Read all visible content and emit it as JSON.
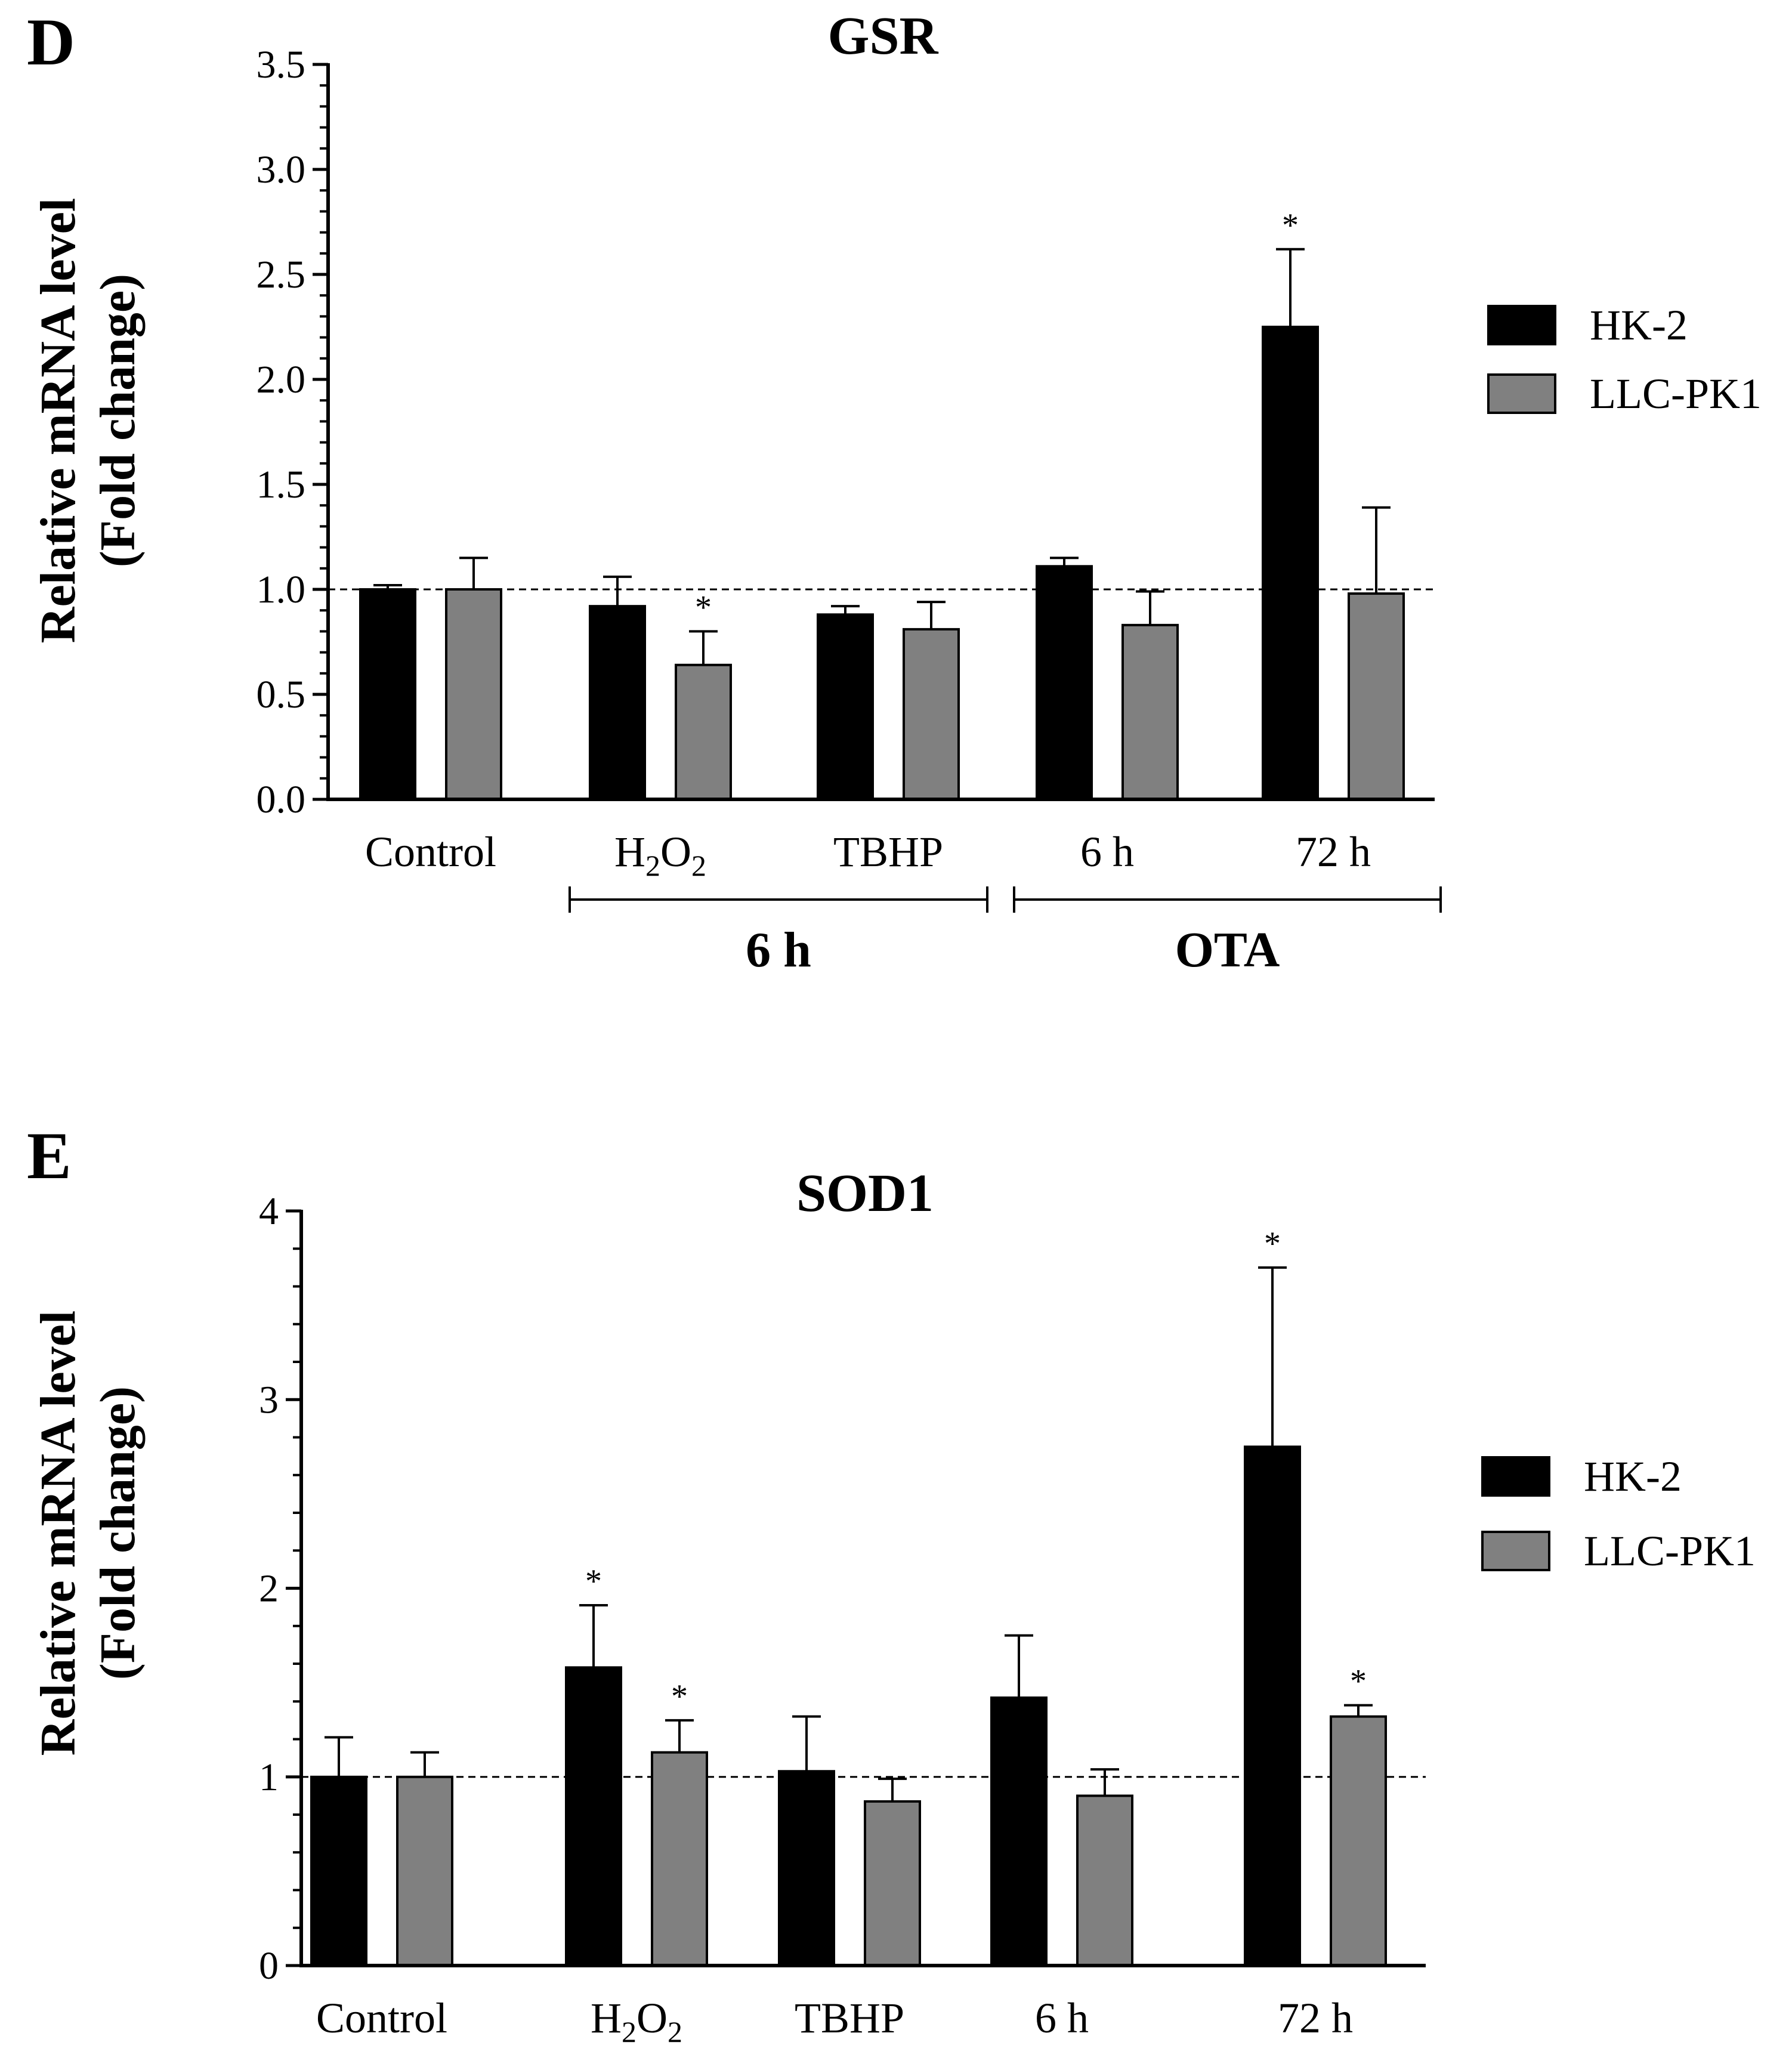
{
  "colors": {
    "hk2": "#000000",
    "llcpk1": "#808080",
    "axis": "#000000"
  },
  "chart_data": [
    {
      "type": "bar",
      "panel_letter": "D",
      "title": "GSR",
      "ylabel_line1": "Relative mRNA level",
      "ylabel_line2": "(Fold change)",
      "ylim": [
        0,
        3.5
      ],
      "yticks": [
        "0.0",
        "0.5",
        "1.0",
        "1.5",
        "2.0",
        "2.5",
        "3.0",
        "3.5"
      ],
      "reference_line": 1.0,
      "categories": [
        "Control",
        "H2O2",
        "TBHP",
        "6 h",
        "72 h"
      ],
      "category_labels": [
        {
          "text": "Control"
        },
        {
          "main": "H",
          "sub1": "2",
          "mid": "O",
          "sub2": "2"
        },
        {
          "text": "TBHP"
        },
        {
          "text": "6 h"
        },
        {
          "text": "72 h"
        }
      ],
      "groups": [
        {
          "label": "6 h",
          "from": 1,
          "to": 2
        },
        {
          "label": "OTA",
          "from": 3,
          "to": 4
        }
      ],
      "series": [
        {
          "name": "HK-2",
          "values": [
            1.0,
            0.92,
            0.88,
            1.11,
            2.25
          ],
          "errors": [
            0.02,
            0.14,
            0.04,
            0.04,
            0.37
          ],
          "significant": [
            false,
            false,
            false,
            false,
            true
          ]
        },
        {
          "name": "LLC-PK1",
          "values": [
            1.0,
            0.64,
            0.81,
            0.83,
            0.98
          ],
          "errors": [
            0.15,
            0.16,
            0.13,
            0.16,
            0.41
          ],
          "significant": [
            false,
            true,
            false,
            false,
            false
          ]
        }
      ],
      "significance_mark": "*",
      "legend": [
        "HK-2",
        "LLC-PK1"
      ],
      "legend_position": "right"
    },
    {
      "type": "bar",
      "panel_letter": "E",
      "title": "SOD1",
      "ylabel_line1": "Relative mRNA level",
      "ylabel_line2": "(Fold change)",
      "ylim": [
        0,
        4
      ],
      "yticks": [
        "0",
        "1",
        "2",
        "3",
        "4"
      ],
      "reference_line": 1.0,
      "categories": [
        "Control",
        "H2O2",
        "TBHP",
        "6 h",
        "72 h"
      ],
      "category_labels": [
        {
          "text": "Control"
        },
        {
          "main": "H",
          "sub1": "2",
          "mid": "O",
          "sub2": "2"
        },
        {
          "text": "TBHP"
        },
        {
          "text": "6 h"
        },
        {
          "text": "72 h"
        }
      ],
      "groups": [],
      "series": [
        {
          "name": "HK-2",
          "values": [
            1.0,
            1.58,
            1.03,
            1.42,
            2.75
          ],
          "errors": [
            0.21,
            0.33,
            0.29,
            0.33,
            0.95
          ],
          "significant": [
            false,
            true,
            false,
            false,
            true
          ]
        },
        {
          "name": "LLC-PK1",
          "values": [
            1.0,
            1.13,
            0.87,
            0.9,
            1.32
          ],
          "errors": [
            0.13,
            0.17,
            0.12,
            0.14,
            0.06
          ],
          "significant": [
            false,
            true,
            false,
            false,
            true
          ]
        }
      ],
      "significance_mark": "*",
      "legend": [
        "HK-2",
        "LLC-PK1"
      ],
      "legend_position": "right"
    }
  ]
}
